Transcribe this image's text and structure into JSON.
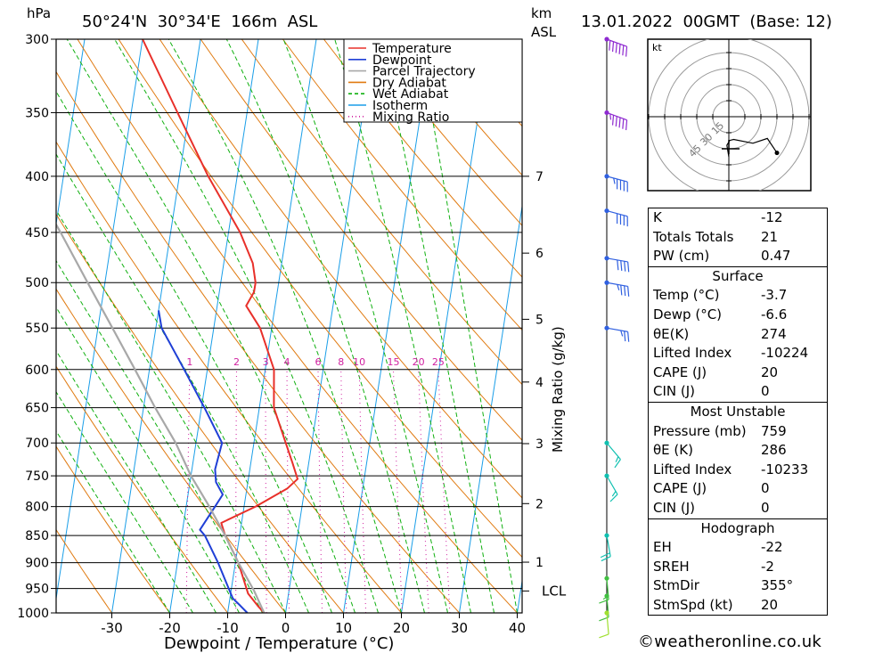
{
  "header": {
    "location": "50°24'N  30°34'E  166m  ASL",
    "pressure_unit": "hPa",
    "height_unit": "km",
    "height_ref": "ASL",
    "datetime": "13.01.2022  00GMT  (Base: 12)"
  },
  "legend": [
    {
      "label": "Temperature",
      "color": "#e8302a",
      "dash": ""
    },
    {
      "label": "Dewpoint",
      "color": "#1f3fd6",
      "dash": ""
    },
    {
      "label": "Parcel Trajectory",
      "color": "#a8a8a8",
      "dash": ""
    },
    {
      "label": "Dry Adiabat",
      "color": "#e07a10",
      "dash": ""
    },
    {
      "label": "Wet Adiabat",
      "color": "#10b010",
      "dash": "4,3"
    },
    {
      "label": "Isotherm",
      "color": "#1a9ee8",
      "dash": ""
    },
    {
      "label": "Mixing Ratio",
      "color": "#d020a0",
      "dash": "1,3"
    }
  ],
  "axis_labels": {
    "x": "Dewpoint / Temperature (°C)",
    "mixing": "Mixing Ratio (g/kg)",
    "lcl": "LCL"
  },
  "chart_data": {
    "type": "line",
    "title": "",
    "xlabel": "Dewpoint / Temperature (°C)",
    "ylabel": "hPa",
    "xlim": [
      -40,
      40
    ],
    "ylim": [
      1000,
      300
    ],
    "y_scale": "log",
    "x_ticks": [
      -30,
      -20,
      -10,
      0,
      10,
      20,
      30,
      40
    ],
    "pressure_levels": [
      300,
      350,
      400,
      450,
      500,
      550,
      600,
      650,
      700,
      750,
      800,
      850,
      900,
      950,
      1000
    ],
    "height_ticks_km": [
      {
        "label": "7",
        "p": 400
      },
      {
        "label": "6",
        "p": 470
      },
      {
        "label": "5",
        "p": 540
      },
      {
        "label": "4",
        "p": 616
      },
      {
        "label": "3",
        "p": 701
      },
      {
        "label": "2",
        "p": 795
      },
      {
        "label": "1",
        "p": 899
      }
    ],
    "lcl_p": 955,
    "mixing_ratio_labels": [
      "1",
      "2",
      "3",
      "4",
      "6",
      "8",
      "10",
      "15",
      "20",
      "25"
    ],
    "series": [
      {
        "name": "Temperature",
        "color": "#e8302a",
        "points": [
          [
            1000,
            -3.7
          ],
          [
            985,
            -5
          ],
          [
            960,
            -7
          ],
          [
            900,
            -9.5
          ],
          [
            850,
            -12.5
          ],
          [
            828,
            -13.5
          ],
          [
            800,
            -8
          ],
          [
            770,
            -3
          ],
          [
            755,
            -1.5
          ],
          [
            730,
            -2.8
          ],
          [
            700,
            -4.5
          ],
          [
            650,
            -7.5
          ],
          [
            600,
            -8.5
          ],
          [
            550,
            -12
          ],
          [
            525,
            -15
          ],
          [
            510,
            -14
          ],
          [
            500,
            -14
          ],
          [
            480,
            -15
          ],
          [
            450,
            -18
          ],
          [
            400,
            -25
          ],
          [
            350,
            -32
          ],
          [
            300,
            -40
          ]
        ]
      },
      {
        "name": "Dewpoint",
        "color": "#1f3fd6",
        "points": [
          [
            1000,
            -6.6
          ],
          [
            985,
            -8
          ],
          [
            970,
            -9.5
          ],
          [
            900,
            -13
          ],
          [
            850,
            -16
          ],
          [
            840,
            -17
          ],
          [
            800,
            -15
          ],
          [
            780,
            -14
          ],
          [
            760,
            -15.5
          ],
          [
            740,
            -16
          ],
          [
            700,
            -15.5
          ],
          [
            650,
            -19.5
          ],
          [
            600,
            -24
          ],
          [
            550,
            -29
          ],
          [
            530,
            -30
          ]
        ]
      },
      {
        "name": "Parcel Trajectory",
        "color": "#a8a8a8",
        "points": [
          [
            1000,
            -3.7
          ],
          [
            955,
            -6
          ],
          [
            900,
            -9.5
          ],
          [
            850,
            -12.5
          ],
          [
            800,
            -16
          ],
          [
            750,
            -20
          ],
          [
            700,
            -23.5
          ],
          [
            650,
            -28
          ],
          [
            600,
            -32.5
          ],
          [
            550,
            -37.5
          ],
          [
            500,
            -43
          ],
          [
            450,
            -49
          ],
          [
            400,
            -56
          ],
          [
            350,
            -64
          ],
          [
            300,
            -73
          ]
        ]
      }
    ],
    "wind_profile": [
      {
        "p": 300,
        "dir": 290,
        "speed_kt": 60
      },
      {
        "p": 350,
        "dir": 290,
        "speed_kt": 55
      },
      {
        "p": 400,
        "dir": 285,
        "speed_kt": 45
      },
      {
        "p": 430,
        "dir": 285,
        "speed_kt": 40
      },
      {
        "p": 475,
        "dir": 280,
        "speed_kt": 40
      },
      {
        "p": 500,
        "dir": 280,
        "speed_kt": 35
      },
      {
        "p": 550,
        "dir": 280,
        "speed_kt": 25
      },
      {
        "p": 700,
        "dir": 320,
        "speed_kt": 15
      },
      {
        "p": 750,
        "dir": 330,
        "speed_kt": 15
      },
      {
        "p": 850,
        "dir": 350,
        "speed_kt": 20
      },
      {
        "p": 930,
        "dir": 355,
        "speed_kt": 15
      },
      {
        "p": 965,
        "dir": 355,
        "speed_kt": 10
      },
      {
        "p": 1000,
        "dir": 355,
        "speed_kt": 10
      }
    ],
    "hodograph": {
      "unit": "kt",
      "ring_labels": [
        "15",
        "30",
        "45"
      ],
      "points": [
        [
          0,
          12
        ],
        [
          -2,
          0
        ],
        [
          1,
          -5
        ],
        [
          5,
          -6
        ],
        [
          25,
          -2
        ],
        [
          40,
          -7
        ],
        [
          50,
          8
        ]
      ]
    }
  },
  "stats": {
    "k": {
      "label": "K",
      "value": "-12"
    },
    "tt": {
      "label": "Totals Totals",
      "value": "21"
    },
    "pw": {
      "label": "PW (cm)",
      "value": "0.47"
    },
    "surface": {
      "title": "Surface",
      "rows": [
        {
          "label": "Temp (°C)",
          "value": "-3.7"
        },
        {
          "label": "Dewp (°C)",
          "value": "-6.6"
        },
        {
          "label": "θE(K)",
          "value": "274"
        },
        {
          "label": "Lifted Index",
          "value": "-10224"
        },
        {
          "label": "CAPE (J)",
          "value": "20"
        },
        {
          "label": "CIN (J)",
          "value": "0"
        }
      ]
    },
    "most_unstable": {
      "title": "Most Unstable",
      "rows": [
        {
          "label": "Pressure (mb)",
          "value": "759"
        },
        {
          "label": "θE (K)",
          "value": "286"
        },
        {
          "label": "Lifted Index",
          "value": "-10233"
        },
        {
          "label": "CAPE (J)",
          "value": "0"
        },
        {
          "label": "CIN (J)",
          "value": "0"
        }
      ]
    },
    "hodograph": {
      "title": "Hodograph",
      "rows": [
        {
          "label": "EH",
          "value": "-22"
        },
        {
          "label": "SREH",
          "value": "-2"
        },
        {
          "label": "StmDir",
          "value": "355°"
        },
        {
          "label": "StmSpd (kt)",
          "value": "20"
        }
      ]
    }
  },
  "credit": "©weatheronline.co.uk"
}
